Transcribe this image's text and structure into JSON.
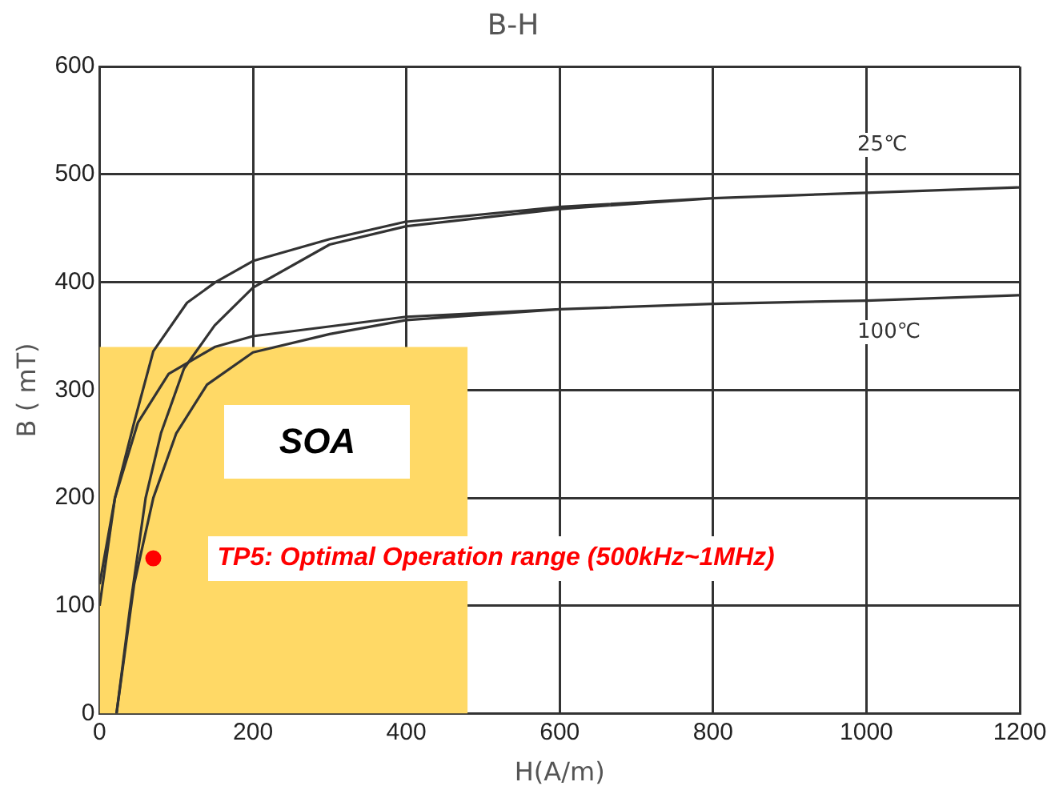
{
  "chart_data": {
    "type": "line",
    "title": "B-H",
    "xlabel": "H(A/m)",
    "ylabel": "B ( mT)",
    "xlim": [
      0,
      1200
    ],
    "xticks": [
      0,
      200,
      400,
      600,
      800,
      1000,
      1200
    ],
    "ylim": [
      0,
      600
    ],
    "yticks": [
      0,
      100,
      200,
      300,
      400,
      500,
      600
    ],
    "grid": true,
    "legend": false,
    "marker": "none",
    "line_style": "solid",
    "series": [
      {
        "type": "area",
        "name": "SOA",
        "color": "#ffd966",
        "x": [
          0,
          480
        ],
        "values": [
          340,
          340
        ]
      },
      {
        "name": "25℃",
        "color": "#333333",
        "x": [
          22,
          40,
          60,
          80,
          110,
          150,
          200,
          300,
          400,
          600,
          800,
          1000,
          1200,
          1000,
          800,
          602,
          398,
          300,
          201,
          151,
          114,
          70,
          45,
          20,
          0
        ],
        "values": [
          0,
          100,
          200,
          260,
          320,
          360,
          395,
          435,
          452,
          468,
          478,
          483,
          488,
          483,
          478,
          470,
          456,
          440,
          420,
          400,
          381,
          336,
          270,
          200,
          120
        ]
      },
      {
        "name": "100℃",
        "color": "#333333",
        "x": [
          22,
          45,
          70,
          100,
          140,
          200,
          300,
          400,
          600,
          800,
          1000,
          1200,
          1000,
          800,
          600,
          400,
          200,
          150,
          90,
          50,
          20,
          0
        ],
        "values": [
          0,
          120,
          200,
          260,
          305,
          335,
          352,
          365,
          375,
          380,
          383,
          388,
          383,
          380,
          375,
          368,
          350,
          340,
          315,
          270,
          200,
          100
        ]
      },
      {
        "type": "scatter",
        "name": "TP5: Optimal Operation range (500kHz~1MHz)",
        "color": "#ff0000",
        "marker": "circle",
        "x": [
          70
        ],
        "values": [
          144
        ]
      }
    ]
  }
}
